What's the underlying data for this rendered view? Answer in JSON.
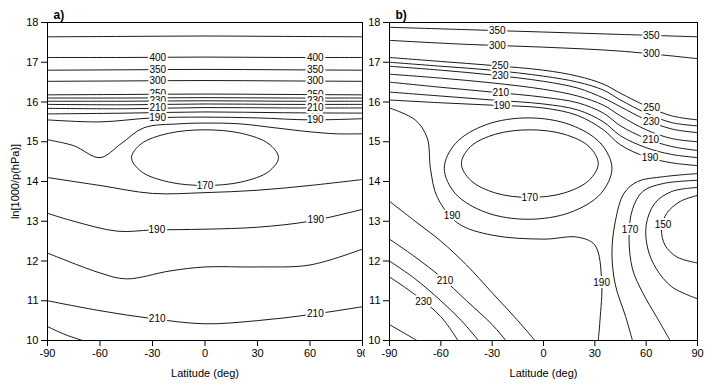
{
  "chart_data": [
    {
      "type": "contour",
      "title": "a)",
      "x_label": "Latitude (deg)",
      "y_label": "ln[1000/p(hPa)]",
      "xlim": [
        -90,
        90
      ],
      "ylim": [
        10,
        18
      ],
      "xticks": [
        -90,
        -60,
        -30,
        0,
        30,
        60,
        90
      ],
      "yticks": [
        10,
        11,
        12,
        13,
        14,
        15,
        16,
        17,
        18
      ],
      "contours": [
        {
          "level": null,
          "x": [
            -90,
            -45,
            0,
            45,
            90
          ],
          "values": [
            17.64,
            17.65,
            17.66,
            17.65,
            17.64
          ]
        },
        {
          "level": 400,
          "x": [
            -90,
            -45,
            0,
            45,
            90
          ],
          "values": [
            17.12,
            17.12,
            17.13,
            17.12,
            17.12
          ]
        },
        {
          "level": 350,
          "x": [
            -90,
            -45,
            0,
            45,
            90
          ],
          "values": [
            16.8,
            16.81,
            16.82,
            16.81,
            16.8
          ]
        },
        {
          "level": 300,
          "x": [
            -90,
            -45,
            0,
            45,
            90
          ],
          "values": [
            16.52,
            16.53,
            16.54,
            16.53,
            16.52
          ]
        },
        {
          "level": 250,
          "x": [
            -90,
            -45,
            0,
            45,
            90
          ],
          "values": [
            16.18,
            16.19,
            16.2,
            16.19,
            16.18
          ]
        },
        {
          "level": null,
          "x": [
            -90,
            -45,
            0,
            45,
            90
          ],
          "values": [
            16.1,
            16.1,
            16.11,
            16.1,
            16.1
          ]
        },
        {
          "level": 230,
          "x": [
            -90,
            -45,
            0,
            45,
            90
          ],
          "values": [
            16.02,
            16.02,
            16.03,
            16.02,
            16.02
          ]
        },
        {
          "level": null,
          "x": [
            -90,
            -45,
            0,
            45,
            90
          ],
          "values": [
            15.94,
            15.93,
            15.95,
            15.94,
            15.94
          ]
        },
        {
          "level": 210,
          "x": [
            -90,
            -45,
            0,
            45,
            90
          ],
          "values": [
            15.84,
            15.83,
            15.86,
            15.85,
            15.85
          ]
        },
        {
          "level": null,
          "x": [
            -90,
            -45,
            0,
            45,
            90
          ],
          "values": [
            15.7,
            15.72,
            15.75,
            15.73,
            15.72
          ]
        },
        {
          "level": 190,
          "x": [
            -90,
            -60,
            -30,
            0,
            30,
            60,
            90
          ],
          "values": [
            15.55,
            15.5,
            15.6,
            15.62,
            15.6,
            15.55,
            15.58
          ]
        },
        {
          "level": null,
          "x": [
            -90,
            -75,
            -60,
            -48,
            -35,
            -15,
            0,
            20,
            40,
            60,
            75,
            90
          ],
          "values": [
            15.05,
            14.9,
            14.6,
            14.95,
            15.35,
            15.45,
            15.47,
            15.45,
            15.35,
            15.25,
            15.2,
            15.2
          ]
        },
        {
          "level": 170,
          "x": [
            42,
            36.4,
            21,
            0,
            -21,
            -36.4,
            -42,
            -36.4,
            -21,
            0,
            21,
            36.4,
            42
          ],
          "values": [
            14.6,
            14.95,
            15.21,
            15.3,
            15.21,
            14.95,
            14.6,
            14.25,
            13.99,
            13.9,
            13.99,
            14.25,
            14.6
          ]
        },
        {
          "level": null,
          "x": [
            -90,
            -60,
            -30,
            0,
            30,
            60,
            90
          ],
          "values": [
            14.1,
            13.9,
            13.7,
            13.72,
            13.78,
            13.9,
            14.05
          ]
        },
        {
          "level": 190,
          "x": [
            -90,
            -75,
            -50,
            -30,
            0,
            30,
            60,
            90
          ],
          "values": [
            13.2,
            13.0,
            12.75,
            12.78,
            12.8,
            12.85,
            13.0,
            13.3
          ]
        },
        {
          "level": null,
          "x": [
            -90,
            -60,
            -45,
            -20,
            0,
            30,
            60,
            90
          ],
          "values": [
            12.2,
            11.7,
            11.55,
            11.75,
            11.85,
            11.85,
            11.9,
            12.3
          ]
        },
        {
          "level": 210,
          "x": [
            -90,
            -60,
            -30,
            0,
            30,
            60,
            90
          ],
          "values": [
            11.0,
            10.75,
            10.55,
            10.42,
            10.5,
            10.65,
            10.85
          ]
        },
        {
          "level": null,
          "x": [
            -90,
            -80,
            -70
          ],
          "values": [
            10.35,
            10.15,
            10.0
          ]
        }
      ]
    },
    {
      "type": "contour",
      "title": "b)",
      "x_label": "Latitude (deg)",
      "xlim": [
        -90,
        90
      ],
      "ylim": [
        10,
        18
      ],
      "xticks": [
        -90,
        -60,
        -30,
        0,
        30,
        60,
        90
      ],
      "yticks": [
        10,
        11,
        12,
        13,
        14,
        15,
        16,
        17,
        18
      ],
      "contours": [
        {
          "level": 350,
          "x": [
            -90,
            -45,
            0,
            45,
            90
          ],
          "values": [
            17.88,
            17.82,
            17.76,
            17.7,
            17.64
          ]
        },
        {
          "level": 300,
          "x": [
            -90,
            -45,
            0,
            45,
            90
          ],
          "values": [
            17.55,
            17.45,
            17.38,
            17.28,
            17.09
          ]
        },
        {
          "level": 250,
          "x": [
            -90,
            -60,
            -30,
            0,
            20,
            35,
            45,
            60,
            75,
            90
          ],
          "values": [
            17.12,
            17.02,
            16.92,
            16.8,
            16.65,
            16.45,
            16.22,
            15.9,
            15.65,
            15.55
          ]
        },
        {
          "level": null,
          "x": [
            -90,
            -60,
            -30,
            0,
            20,
            35,
            45,
            60,
            75,
            90
          ],
          "values": [
            17.0,
            16.9,
            16.8,
            16.65,
            16.5,
            16.3,
            16.05,
            15.72,
            15.48,
            15.4
          ]
        },
        {
          "level": 230,
          "x": [
            -90,
            -60,
            -30,
            0,
            20,
            35,
            45,
            60,
            75,
            90
          ],
          "values": [
            16.9,
            16.8,
            16.68,
            16.52,
            16.35,
            16.1,
            15.88,
            15.55,
            15.32,
            15.23
          ]
        },
        {
          "level": null,
          "x": [
            -90,
            -60,
            -30,
            0,
            20,
            35,
            45,
            60,
            75,
            90
          ],
          "values": [
            16.7,
            16.6,
            16.48,
            16.32,
            16.15,
            15.92,
            15.65,
            15.3,
            15.08,
            15.0
          ]
        },
        {
          "level": 210,
          "x": [
            -90,
            -60,
            -30,
            0,
            20,
            35,
            45,
            60,
            75,
            90
          ],
          "values": [
            16.5,
            16.37,
            16.25,
            16.12,
            15.98,
            15.72,
            15.4,
            15.08,
            14.88,
            14.78
          ]
        },
        {
          "level": null,
          "x": [
            -90,
            -60,
            -30,
            0,
            20,
            35,
            45,
            60,
            75,
            90
          ],
          "values": [
            16.25,
            16.15,
            16.05,
            15.95,
            15.8,
            15.5,
            15.15,
            14.85,
            14.68,
            14.6
          ]
        },
        {
          "level": 190,
          "x": [
            -90,
            -60,
            -30,
            0,
            20,
            35,
            45,
            60,
            75,
            90
          ],
          "values": [
            16.05,
            15.98,
            15.92,
            15.85,
            15.66,
            15.3,
            14.92,
            14.62,
            14.47,
            14.4
          ]
        },
        {
          "level": 190,
          "x": [
            -90,
            -75,
            -68,
            -66,
            -62,
            -50,
            -30,
            0,
            20,
            30,
            34,
            33,
            32
          ],
          "values": [
            15.85,
            15.55,
            15.1,
            14.3,
            13.6,
            12.95,
            12.65,
            12.55,
            12.6,
            12.4,
            11.5,
            10.5,
            10.0
          ]
        },
        {
          "level": null,
          "x": [
            40,
            33.4,
            15.5,
            -9,
            -33.5,
            -51.4,
            -58,
            -51.4,
            -33.5,
            -9,
            15.5,
            33.4,
            40
          ],
          "values": [
            14.33,
            14.96,
            15.43,
            15.6,
            15.43,
            14.96,
            14.33,
            13.69,
            13.22,
            13.05,
            13.22,
            13.69,
            14.33
          ]
        },
        {
          "level": 170,
          "x": [
            32,
            26.6,
            12,
            -8,
            -28,
            -42.6,
            -48,
            -42.6,
            -28,
            -8,
            12,
            26.6,
            32
          ],
          "values": [
            14.45,
            14.88,
            15.19,
            15.3,
            15.19,
            14.88,
            14.45,
            14.03,
            13.71,
            13.6,
            13.71,
            14.03,
            14.45
          ]
        },
        {
          "level": null,
          "x": [
            90,
            70,
            55,
            47,
            42,
            40,
            42,
            48,
            52
          ],
          "values": [
            14.2,
            14.12,
            14.0,
            13.7,
            13.0,
            12.2,
            11.4,
            10.6,
            10.0
          ]
        },
        {
          "level": 170,
          "x": [
            90,
            70,
            58,
            52,
            50,
            52,
            58,
            66,
            74
          ],
          "values": [
            14.03,
            13.95,
            13.75,
            13.3,
            12.6,
            11.8,
            11.2,
            10.6,
            10.0
          ]
        },
        {
          "level": null,
          "x": [
            90,
            75,
            65,
            60,
            61,
            66,
            75,
            90
          ],
          "values": [
            13.85,
            13.75,
            13.45,
            12.9,
            12.3,
            11.8,
            11.35,
            11.05
          ]
        },
        {
          "level": 150,
          "x": [
            90,
            80,
            72,
            69,
            71,
            78,
            90
          ],
          "values": [
            13.65,
            13.5,
            13.2,
            12.8,
            12.4,
            12.1,
            11.95
          ]
        },
        {
          "level": null,
          "x": [
            -90,
            -75,
            -60,
            -45,
            -30,
            -15,
            -5
          ],
          "values": [
            13.5,
            13.0,
            12.5,
            11.9,
            11.2,
            10.5,
            10.0
          ]
        },
        {
          "level": 210,
          "x": [
            -90,
            -75,
            -60,
            -45,
            -30,
            -22
          ],
          "values": [
            12.55,
            12.1,
            11.6,
            11.0,
            10.4,
            10.0
          ]
        },
        {
          "level": null,
          "x": [
            -90,
            -75,
            -60,
            -48,
            -38
          ],
          "values": [
            12.0,
            11.55,
            11.0,
            10.5,
            10.0
          ]
        },
        {
          "level": 230,
          "x": [
            -90,
            -75,
            -60,
            -50
          ],
          "values": [
            11.6,
            11.15,
            10.6,
            10.0
          ]
        },
        {
          "level": null,
          "x": [
            -90,
            -80,
            -74
          ],
          "values": [
            10.4,
            10.15,
            10.0
          ]
        }
      ]
    }
  ]
}
